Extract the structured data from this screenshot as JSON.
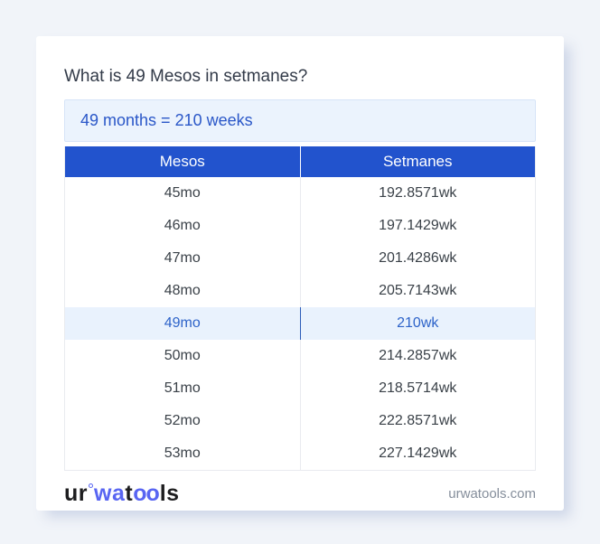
{
  "theme": {
    "page_bg": "#f1f4f9",
    "card_bg": "#ffffff",
    "title_color": "#333b49",
    "answer_bg": "#ebf3fd",
    "answer_border": "#d6e4f8",
    "answer_color": "#2a57c8",
    "header_bg": "#2253cd",
    "header_color": "#ffffff",
    "cell_color": "#3a4148",
    "highlight_bg": "#e9f2fd",
    "highlight_color": "#2d63c9",
    "highlight_divider": "#2b5cb9",
    "table_border": "#e9ebef",
    "logo_dark": "#1d1d1f",
    "logo_accent": "#5865f2",
    "site_color": "#858e9b"
  },
  "question": "What is 49 Mesos in setmanes?",
  "answer": "49 months = 210 weeks",
  "table": {
    "headers": {
      "mesos": "Mesos",
      "setmanes": "Setmanes"
    },
    "rows": [
      {
        "mesos": "45mo",
        "setmanes": "192.8571wk",
        "highlight": false
      },
      {
        "mesos": "46mo",
        "setmanes": "197.1429wk",
        "highlight": false
      },
      {
        "mesos": "47mo",
        "setmanes": "201.4286wk",
        "highlight": false
      },
      {
        "mesos": "48mo",
        "setmanes": "205.7143wk",
        "highlight": false
      },
      {
        "mesos": "49mo",
        "setmanes": "210wk",
        "highlight": true
      },
      {
        "mesos": "50mo",
        "setmanes": "214.2857wk",
        "highlight": false
      },
      {
        "mesos": "51mo",
        "setmanes": "218.5714wk",
        "highlight": false
      },
      {
        "mesos": "52mo",
        "setmanes": "222.8571wk",
        "highlight": false
      },
      {
        "mesos": "53mo",
        "setmanes": "227.1429wk",
        "highlight": false
      }
    ]
  },
  "footer": {
    "logo": {
      "part1": "ur",
      "part2": "wa",
      "part3": "t",
      "part4": "oo",
      "part5": "ls"
    },
    "site": "urwatools.com"
  }
}
